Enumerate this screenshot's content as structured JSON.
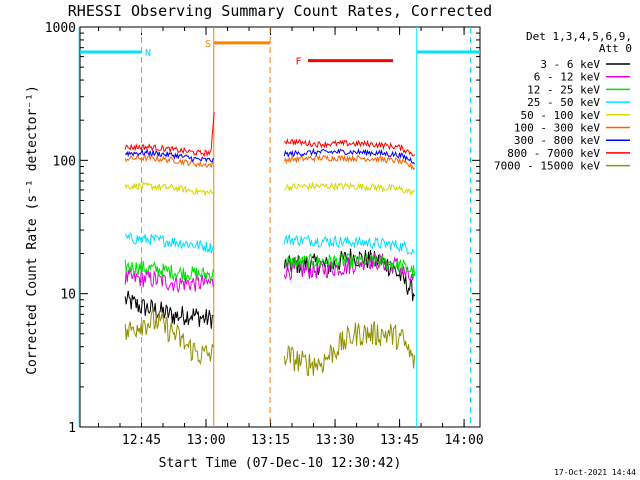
{
  "chart_data": {
    "type": "line",
    "title": "RHESSI Observing Summary Count Rates, Corrected",
    "xlabel": "Start Time (07-Dec-10 12:30:42)",
    "ylabel": "Corrected Count Rate (s⁻¹ detector⁻¹)",
    "yscale": "log",
    "ylim": [
      1,
      1000
    ],
    "xlim_minutes_after_start": [
      0,
      93
    ],
    "x_ticks": [
      {
        "label": "12:45",
        "t": 14.3
      },
      {
        "label": "13:00",
        "t": 29.3
      },
      {
        "label": "13:15",
        "t": 44.3
      },
      {
        "label": "13:30",
        "t": 59.3
      },
      {
        "label": "13:45",
        "t": 74.3
      },
      {
        "label": "14:00",
        "t": 89.3
      }
    ],
    "y_ticks": [
      {
        "label": "1",
        "v": 1
      },
      {
        "label": "10",
        "v": 10
      },
      {
        "label": "100",
        "v": 100
      },
      {
        "label": "1000",
        "v": 1000
      }
    ],
    "legend_header": [
      "Det 1,3,4,5,6,9,",
      "Att 0"
    ],
    "legend_placement": "right",
    "timestamp": "17-Oct-2021 14:44",
    "segments": [
      [
        10.5,
        31.0
      ],
      [
        47.5,
        77.8
      ]
    ],
    "series": [
      {
        "name": "3 - 6 keV",
        "color": "#000000",
        "values": [
          [
            10.5,
            9.0
          ],
          [
            14,
            8.0
          ],
          [
            18,
            7.5
          ],
          [
            22,
            6.8
          ],
          [
            26,
            7.0
          ],
          [
            29,
            6.5
          ],
          [
            31,
            6.5
          ],
          [
            47.5,
            16
          ],
          [
            53,
            17
          ],
          [
            58,
            16
          ],
          [
            63,
            19
          ],
          [
            67,
            18
          ],
          [
            71,
            17
          ],
          [
            74,
            14
          ],
          [
            77.8,
            10
          ]
        ]
      },
      {
        "name": "6 - 12 keV",
        "color": "#e000e0",
        "values": [
          [
            10.5,
            13
          ],
          [
            16,
            13
          ],
          [
            22,
            12
          ],
          [
            28,
            12
          ],
          [
            31,
            12
          ],
          [
            47.5,
            15
          ],
          [
            55,
            15
          ],
          [
            62,
            16
          ],
          [
            67,
            18
          ],
          [
            71,
            17
          ],
          [
            74,
            16
          ],
          [
            77.8,
            12
          ]
        ]
      },
      {
        "name": "12 - 25 keV",
        "color": "#00e000",
        "values": [
          [
            10.5,
            16
          ],
          [
            16,
            15.5
          ],
          [
            22,
            14.5
          ],
          [
            28,
            14
          ],
          [
            31,
            14
          ],
          [
            47.5,
            17
          ],
          [
            55,
            17.5
          ],
          [
            62,
            17.5
          ],
          [
            68,
            17.5
          ],
          [
            74,
            16.5
          ],
          [
            77.8,
            14.5
          ]
        ]
      },
      {
        "name": "25 - 50 keV",
        "color": "#00e0ff",
        "values": [
          [
            10.5,
            26
          ],
          [
            16,
            25.5
          ],
          [
            22,
            24.5
          ],
          [
            28,
            23
          ],
          [
            31,
            22
          ],
          [
            47.5,
            25.5
          ],
          [
            55,
            25
          ],
          [
            62,
            24.5
          ],
          [
            68,
            24
          ],
          [
            74,
            23
          ],
          [
            77.8,
            21
          ]
        ]
      },
      {
        "name": "50 - 100 keV",
        "color": "#d8d800",
        "values": [
          [
            10.5,
            64
          ],
          [
            16,
            64
          ],
          [
            22,
            62
          ],
          [
            28,
            58
          ],
          [
            31,
            57
          ],
          [
            47.5,
            63
          ],
          [
            55,
            64
          ],
          [
            62,
            64
          ],
          [
            68,
            63
          ],
          [
            74,
            61
          ],
          [
            77.8,
            57
          ]
        ]
      },
      {
        "name": "100 - 300 keV",
        "color": "#ff6000",
        "values": [
          [
            10.5,
            103
          ],
          [
            16,
            104
          ],
          [
            22,
            100
          ],
          [
            28,
            93
          ],
          [
            31,
            92
          ],
          [
            47.5,
            101
          ],
          [
            55,
            104
          ],
          [
            62,
            104
          ],
          [
            68,
            103
          ],
          [
            74,
            99
          ],
          [
            77.8,
            88
          ]
        ]
      },
      {
        "name": "300 - 800 keV",
        "color": "#0000ff",
        "values": [
          [
            10.5,
            113
          ],
          [
            16,
            114
          ],
          [
            22,
            109
          ],
          [
            28,
            101
          ],
          [
            31,
            100
          ],
          [
            47.5,
            111
          ],
          [
            55,
            115
          ],
          [
            62,
            116
          ],
          [
            68,
            114
          ],
          [
            74,
            110
          ],
          [
            77.8,
            98
          ]
        ]
      },
      {
        "name": "800 - 7000 keV",
        "color": "#ff0000",
        "values": [
          [
            10.5,
            125
          ],
          [
            16,
            126
          ],
          [
            22,
            120
          ],
          [
            28,
            113
          ],
          [
            30.5,
            115
          ],
          [
            31.2,
            240
          ],
          [
            47.5,
            140
          ],
          [
            55,
            132
          ],
          [
            62,
            134
          ],
          [
            68,
            132
          ],
          [
            74,
            126
          ],
          [
            77.8,
            111
          ]
        ]
      },
      {
        "name": "7000 - 15000 keV",
        "color": "#909000",
        "values": [
          [
            10.5,
            5.0
          ],
          [
            14,
            6.0
          ],
          [
            18,
            6.2
          ],
          [
            22,
            5.0
          ],
          [
            25,
            4.0
          ],
          [
            28,
            3.5
          ],
          [
            31,
            3.5
          ],
          [
            47.5,
            3.5
          ],
          [
            52,
            3.0
          ],
          [
            56,
            3.0
          ],
          [
            60,
            4.0
          ],
          [
            64,
            5.0
          ],
          [
            68,
            5.0
          ],
          [
            72,
            5.0
          ],
          [
            75,
            4.5
          ],
          [
            77.8,
            3.0
          ]
        ]
      }
    ],
    "flags": [
      {
        "label": "N",
        "color": "#00e0ff",
        "level": 650,
        "spans": [
          [
            0,
            14.3
          ],
          [
            78.3,
            93
          ]
        ],
        "dashed_lines_t": [
          14.3,
          90.8
        ],
        "solid_lines_t": [
          -0.2,
          78.3
        ],
        "label_t": 15.8
      },
      {
        "label": "S",
        "color": "#ff8000",
        "level": 760,
        "spans": [
          [
            31.1,
            44.2
          ]
        ],
        "dashed_lines_t": [
          44.2
        ],
        "solid_lines_t": [
          31.1
        ],
        "label_t": 29.8
      },
      {
        "label": "F",
        "color": "#ff0000",
        "level": 560,
        "spans": [
          [
            53.0,
            72.8
          ]
        ],
        "dashed_lines_t": [],
        "solid_lines_t": [],
        "label_t": 50.8
      }
    ]
  }
}
